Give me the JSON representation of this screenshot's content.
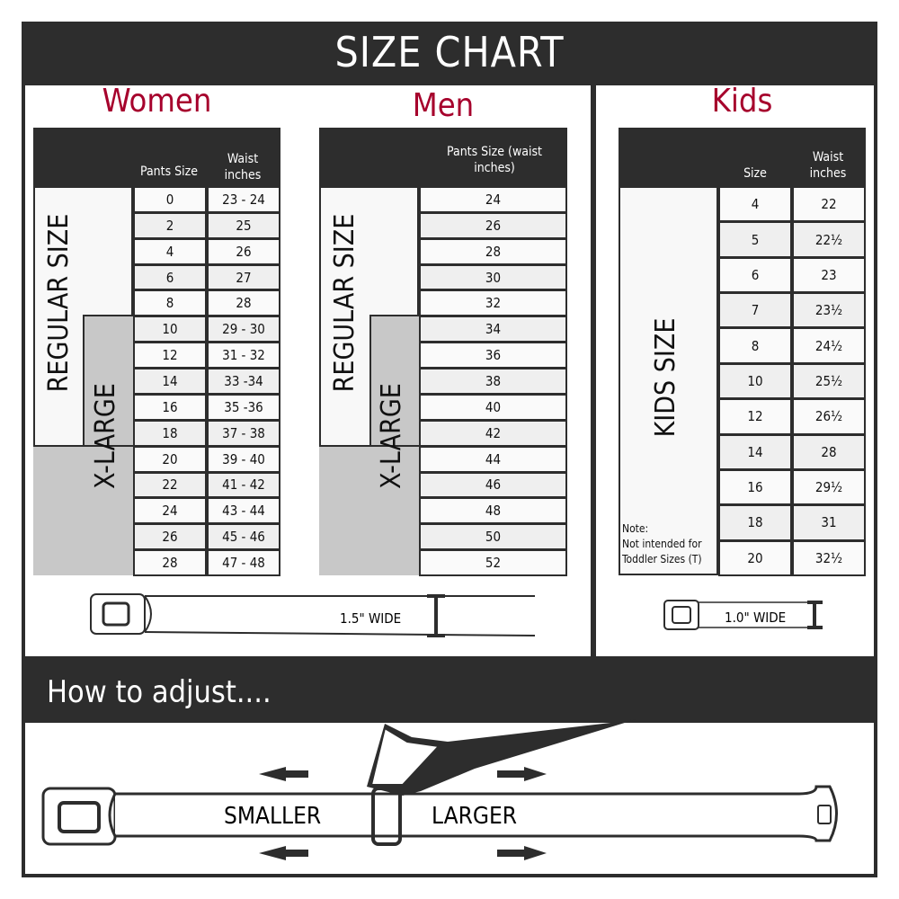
{
  "title": "SIZE CHART",
  "women": {
    "heading": "Women",
    "col1": "Pants Size",
    "col2": "Waist inches",
    "regular": "REGULAR SIZE",
    "xlarge": "X-LARGE",
    "rows": [
      [
        "0",
        "23 - 24"
      ],
      [
        "2",
        "25"
      ],
      [
        "4",
        "26"
      ],
      [
        "6",
        "27"
      ],
      [
        "8",
        "28"
      ],
      [
        "10",
        "29 - 30"
      ],
      [
        "12",
        "31 - 32"
      ],
      [
        "14",
        "33 -34"
      ],
      [
        "16",
        "35 -36"
      ],
      [
        "18",
        "37 - 38"
      ],
      [
        "20",
        "39 - 40"
      ],
      [
        "22",
        "41 - 42"
      ],
      [
        "24",
        "43 - 44"
      ],
      [
        "26",
        "45 - 46"
      ],
      [
        "28",
        "47 - 48"
      ]
    ]
  },
  "men": {
    "heading": "Men",
    "col1": "Pants Size (waist inches)",
    "regular": "REGULAR SIZE",
    "xlarge": "X-LARGE",
    "rows": [
      "24",
      "26",
      "28",
      "30",
      "32",
      "34",
      "36",
      "38",
      "40",
      "42",
      "44",
      "46",
      "48",
      "50",
      "52"
    ]
  },
  "kids": {
    "heading": "Kids",
    "col1": "Size",
    "col2": "Waist inches",
    "label": "KIDS SIZE",
    "note_title": "Note:",
    "note_text": "Not intended for Toddler Sizes (T)",
    "rows": [
      [
        "4",
        "22"
      ],
      [
        "5",
        "22½"
      ],
      [
        "6",
        "23"
      ],
      [
        "7",
        "23½"
      ],
      [
        "8",
        "24½"
      ],
      [
        "10",
        "25½"
      ],
      [
        "12",
        "26½"
      ],
      [
        "14",
        "28"
      ],
      [
        "16",
        "29½"
      ],
      [
        "18",
        "31"
      ],
      [
        "20",
        "32½"
      ]
    ]
  },
  "belt_adult_width": "1.5\" WIDE",
  "belt_kids_width": "1.0\" WIDE",
  "adjust": {
    "heading": "How to adjust....",
    "smaller": "SMALLER",
    "larger": "LARGER"
  }
}
